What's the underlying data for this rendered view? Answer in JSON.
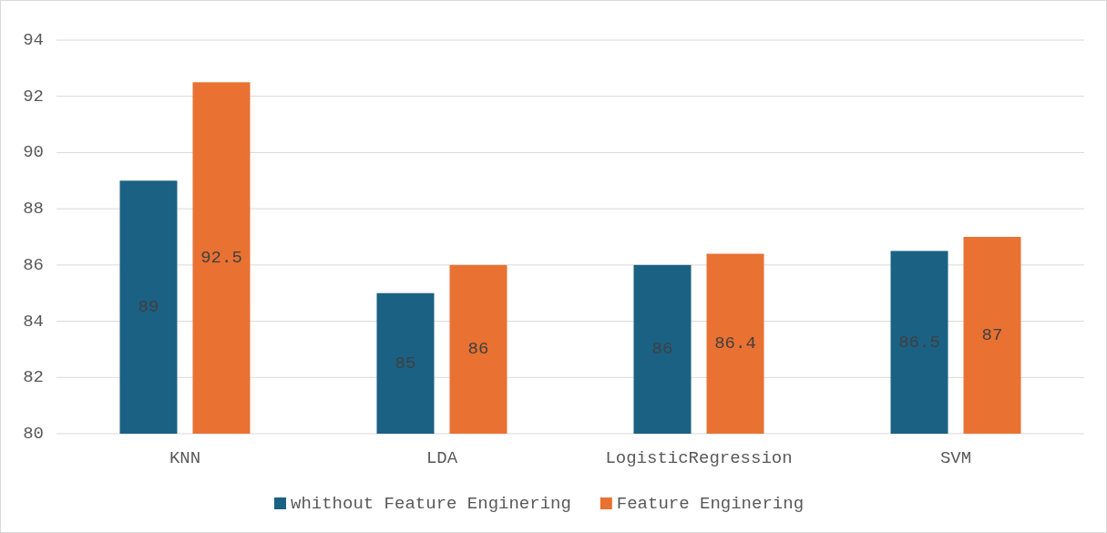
{
  "chart_data": {
    "type": "bar",
    "categories": [
      "KNN",
      "LDA",
      "LogisticRegression",
      "SVM"
    ],
    "series": [
      {
        "name": "whithout Feature Enginering",
        "color": "#1b6183",
        "values": [
          89,
          85,
          86,
          86.5
        ]
      },
      {
        "name": "Feature Enginering",
        "color": "#e97132",
        "values": [
          92.5,
          86,
          86.4,
          87
        ]
      }
    ],
    "ylim": [
      80,
      94
    ],
    "yticks": [
      80,
      82,
      84,
      86,
      88,
      90,
      92,
      94
    ],
    "grid": "y",
    "legend": "bottom",
    "data_labels": true
  }
}
